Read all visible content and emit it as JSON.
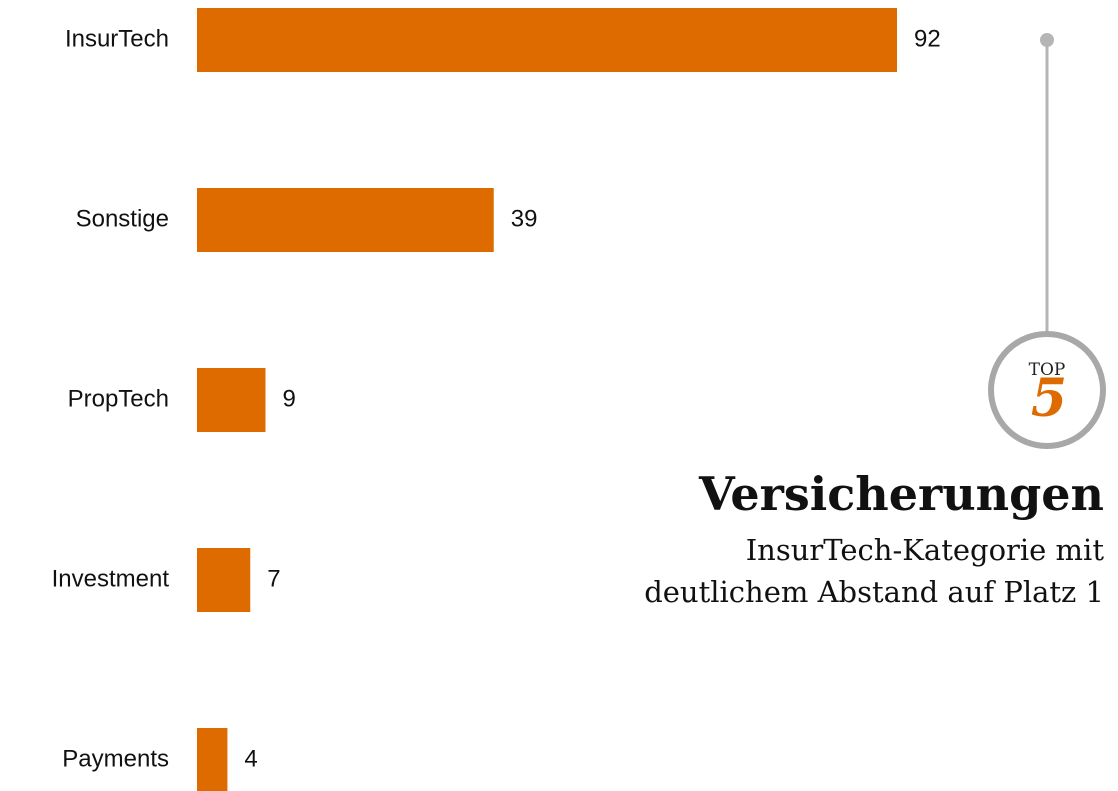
{
  "chart_data": {
    "type": "bar",
    "orientation": "horizontal",
    "categories": [
      "InsurTech",
      "Sonstige",
      "PropTech",
      "Investment",
      "Payments"
    ],
    "values": [
      92,
      39,
      9,
      7,
      4
    ],
    "color": "#dd6b00"
  },
  "annotation": {
    "badge_top": "TOP",
    "badge_number": "5",
    "title": "Versicherungen",
    "subtitle_lines": [
      "InsurTech-Kategorie mit",
      "deutlichem Abstand auf Platz 1"
    ]
  }
}
